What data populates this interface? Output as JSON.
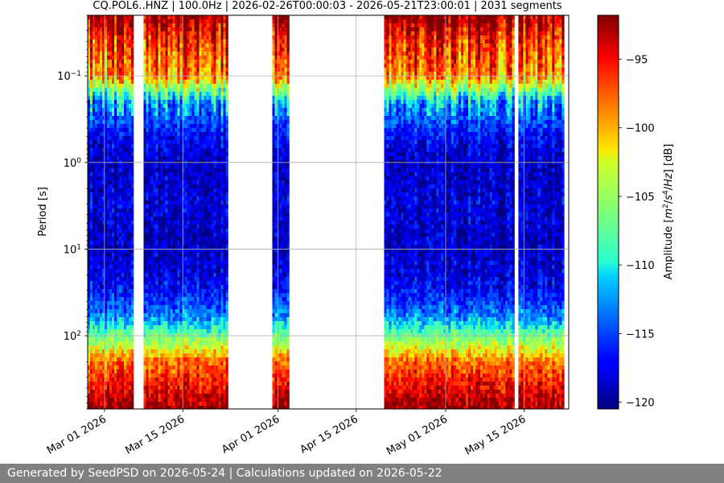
{
  "footer": {
    "text": "Generated by SeedPSD on 2026-05-24 | Calculations updated on 2026-05-22"
  },
  "colors": {
    "footer_bg": "#808080",
    "grid": "#b0b0b0",
    "empty": "#ffffff"
  },
  "chart_data": {
    "type": "heatmap",
    "title": "CQ.POL6..HNZ | 100.0Hz | 2026-02-26T00:00:03 - 2026-05-21T23:00:01 | 2031 segments",
    "xlabel": "",
    "ylabel": "Period [s]",
    "x_range": [
      "2026-02-26",
      "2026-05-23"
    ],
    "x_ticks": [
      {
        "date": "2026-03-01",
        "label": "Mar 01 2026"
      },
      {
        "date": "2026-03-15",
        "label": "Mar 15 2026"
      },
      {
        "date": "2026-04-01",
        "label": "Apr 01 2026"
      },
      {
        "date": "2026-04-15",
        "label": "Apr 15 2026"
      },
      {
        "date": "2026-05-01",
        "label": "May 01 2026"
      },
      {
        "date": "2026-05-15",
        "label": "May 15 2026"
      }
    ],
    "y_scale": "log",
    "y_inverted": true,
    "y_range": [
      0.02,
      700
    ],
    "y_ticks": [
      {
        "value": 0.1,
        "base": "10",
        "exp": "−1"
      },
      {
        "value": 1,
        "base": "10",
        "exp": "0"
      },
      {
        "value": 10,
        "base": "10",
        "exp": "1"
      },
      {
        "value": 100,
        "base": "10",
        "exp": "2"
      }
    ],
    "grid": true,
    "data_coverage": [
      {
        "start": "2026-02-26",
        "end": "2026-03-05"
      },
      {
        "start": "2026-03-08",
        "end": "2026-03-22"
      },
      {
        "start": "2026-03-31",
        "end": "2026-04-02"
      },
      {
        "start": "2026-04-20",
        "end": "2026-04-25"
      },
      {
        "start": "2026-04-25",
        "end": "2026-05-01"
      },
      {
        "start": "2026-05-02",
        "end": "2026-05-07"
      },
      {
        "start": "2026-05-08",
        "end": "2026-05-09"
      },
      {
        "start": "2026-05-10",
        "end": "2026-05-11"
      },
      {
        "start": "2026-05-12",
        "end": "2026-05-12"
      },
      {
        "start": "2026-05-14",
        "end": "2026-05-16"
      },
      {
        "start": "2026-05-17",
        "end": "2026-05-21"
      }
    ],
    "psd_profile": [
      {
        "period": 0.02,
        "db": -92
      },
      {
        "period": 0.04,
        "db": -96
      },
      {
        "period": 0.1,
        "db": -99
      },
      {
        "period": 0.2,
        "db": -112
      },
      {
        "period": 0.5,
        "db": -117
      },
      {
        "period": 1,
        "db": -119
      },
      {
        "period": 3,
        "db": -118
      },
      {
        "period": 10,
        "db": -119
      },
      {
        "period": 30,
        "db": -117
      },
      {
        "period": 60,
        "db": -113
      },
      {
        "period": 100,
        "db": -107
      },
      {
        "period": 200,
        "db": -98
      },
      {
        "period": 700,
        "db": -92
      }
    ],
    "colorbar": {
      "label": "Amplitude [m²/s⁴/Hz] [dB]",
      "cmap": "jet",
      "vmin": -120.5,
      "vmax": -91.8,
      "ticks": [
        -95,
        -100,
        -105,
        -110,
        -115,
        -120
      ],
      "tick_labels": [
        "−95",
        "−100",
        "−105",
        "−110",
        "−115",
        "−120"
      ]
    }
  }
}
